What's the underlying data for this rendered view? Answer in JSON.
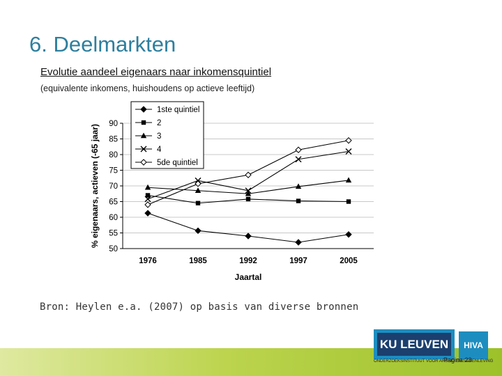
{
  "slide": {
    "title": "6. Deelmarkten",
    "source": "Bron: Heylen e.a. (2007) op basis van diverse bronnen",
    "page_number": "Pagina 23"
  },
  "logos": {
    "ku_leuven": "KU LEUVEN",
    "hiva": "HIVA",
    "strip_text": "ONDERZOEKSINSTITUUT VOOR ARBEID EN SAMENLEVING"
  },
  "colors": {
    "title": "#2e7f9e",
    "series": "#000000"
  },
  "chart_data": {
    "type": "line",
    "title": "Evolutie aandeel eigenaars naar inkomensquintiel",
    "subtitle": "(equivalente inkomens, huishoudens op actieve leeftijd)",
    "xlabel": "Jaartal",
    "ylabel": "% eigenaars, actieven (-65 jaar)",
    "categories": [
      "1976",
      "1985",
      "1992",
      "1997",
      "2005"
    ],
    "ylim": [
      50,
      90
    ],
    "yticks": [
      50,
      55,
      60,
      65,
      70,
      75,
      80,
      85,
      90
    ],
    "grid": true,
    "legend_position": "top-left",
    "series": [
      {
        "name": "1ste quintiel",
        "marker": "diamond-filled",
        "values": [
          61.3,
          55.7,
          54.0,
          52.0,
          54.5
        ]
      },
      {
        "name": "2",
        "marker": "square",
        "values": [
          67.0,
          64.5,
          65.8,
          65.2,
          65.0
        ]
      },
      {
        "name": "3",
        "marker": "triangle",
        "values": [
          69.5,
          68.5,
          67.5,
          69.8,
          71.8
        ]
      },
      {
        "name": "4",
        "marker": "x",
        "values": [
          65.8,
          71.7,
          68.5,
          78.5,
          81.0
        ]
      },
      {
        "name": "5de quintiel",
        "marker": "diamond-open",
        "values": [
          64.0,
          70.7,
          73.5,
          81.5,
          84.5
        ]
      }
    ]
  }
}
